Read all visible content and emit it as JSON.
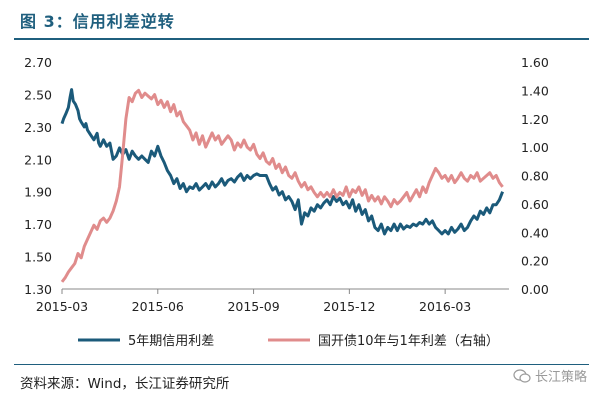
{
  "figure_title": "图 3：信用利差逆转",
  "source": "资料来源：Wind，长江证券研究所",
  "watermark": "长江策略",
  "colors": {
    "title": "#1f5f7e",
    "credit": "#1b5a7a",
    "cdb": "#e08c8c"
  },
  "chart_data": {
    "type": "line",
    "title": "",
    "x_tick_labels": [
      "2015-03",
      "2015-06",
      "2015-09",
      "2015-12",
      "2016-03"
    ],
    "x_range": [
      "2015-03",
      "2016-05"
    ],
    "y_left": {
      "ticks": [
        "1.30",
        "1.50",
        "1.70",
        "1.90",
        "2.10",
        "2.30",
        "2.50",
        "2.70"
      ],
      "ylim": [
        1.3,
        2.7
      ]
    },
    "y_right": {
      "ticks": [
        "0.00",
        "0.20",
        "0.40",
        "0.60",
        "0.80",
        "1.00",
        "1.20",
        "1.40",
        "1.60"
      ],
      "ylim": [
        0.0,
        1.6
      ]
    },
    "grid": false,
    "legend_position": "bottom",
    "series": [
      {
        "name": "5年期信用利差",
        "axis": "left",
        "color": "#1b5a7a",
        "x": [
          0,
          0.05,
          0.12,
          0.2,
          0.25,
          0.3,
          0.35,
          0.42,
          0.5,
          0.55,
          0.6,
          0.7,
          0.75,
          0.8,
          0.9,
          1.0,
          1.1,
          1.15,
          1.2,
          1.3,
          1.4,
          1.5,
          1.6,
          1.7,
          1.8,
          1.9,
          2.0,
          2.1,
          2.2,
          2.3,
          2.4,
          2.5,
          2.6,
          2.7,
          2.8,
          2.9,
          3.0,
          3.1,
          3.2,
          3.3,
          3.4,
          3.5,
          3.6,
          3.7,
          3.8,
          3.9,
          4.0,
          4.1,
          4.2,
          4.3,
          4.4,
          4.5,
          4.6,
          4.7,
          4.8,
          4.9,
          5.0,
          5.1,
          5.2,
          5.3,
          5.4,
          5.5,
          5.6,
          5.7,
          5.8,
          5.9,
          6.0,
          6.1,
          6.2,
          6.3,
          6.4,
          6.5,
          6.6,
          6.7,
          6.8,
          6.9,
          7.0,
          7.1,
          7.2,
          7.3,
          7.4,
          7.5,
          7.6,
          7.7,
          7.8,
          7.9,
          8.0,
          8.1,
          8.2,
          8.3,
          8.4,
          8.5,
          8.6,
          8.7,
          8.8,
          8.9,
          9.0,
          9.1,
          9.2,
          9.3,
          9.4,
          9.5,
          9.6,
          9.7,
          9.8,
          9.9,
          10.0,
          10.1,
          10.2,
          10.3,
          10.4,
          10.5,
          10.6,
          10.7,
          10.8,
          10.9,
          11.0,
          11.1,
          11.2,
          11.3,
          11.4,
          11.5,
          11.6,
          11.7,
          11.8,
          11.9,
          12.0,
          12.1,
          12.2,
          12.3,
          12.4,
          12.5,
          12.6,
          12.7,
          12.8,
          12.9,
          13.0,
          13.1,
          13.2,
          13.3,
          13.4,
          13.5,
          13.6,
          13.7,
          13.8
        ],
        "y": [
          2.32,
          2.35,
          2.38,
          2.42,
          2.48,
          2.53,
          2.46,
          2.44,
          2.4,
          2.35,
          2.33,
          2.3,
          2.32,
          2.28,
          2.25,
          2.22,
          2.26,
          2.2,
          2.18,
          2.22,
          2.18,
          2.2,
          2.1,
          2.12,
          2.17,
          2.13,
          2.16,
          2.1,
          2.15,
          2.12,
          2.1,
          2.12,
          2.1,
          2.08,
          2.15,
          2.12,
          2.18,
          2.12,
          2.08,
          2.03,
          2.0,
          1.95,
          1.98,
          1.92,
          1.95,
          1.9,
          1.93,
          1.92,
          1.95,
          1.91,
          1.93,
          1.95,
          1.92,
          1.96,
          1.93,
          1.95,
          1.98,
          1.94,
          1.97,
          1.98,
          1.96,
          1.99,
          2.01,
          1.97,
          2.0,
          1.98,
          2.0,
          2.01,
          2.0,
          2.0,
          2.0,
          1.95,
          1.91,
          1.93,
          1.88,
          1.9,
          1.85,
          1.87,
          1.84,
          1.79,
          1.85,
          1.7,
          1.77,
          1.75,
          1.8,
          1.78,
          1.82,
          1.8,
          1.83,
          1.85,
          1.82,
          1.87,
          1.84,
          1.86,
          1.82,
          1.84,
          1.8,
          1.85,
          1.78,
          1.82,
          1.76,
          1.79,
          1.72,
          1.75,
          1.68,
          1.66,
          1.7,
          1.64,
          1.68,
          1.66,
          1.7,
          1.66,
          1.7,
          1.67,
          1.69,
          1.68,
          1.7,
          1.69,
          1.71,
          1.7,
          1.73,
          1.7,
          1.72,
          1.68,
          1.66,
          1.64,
          1.66,
          1.64,
          1.68,
          1.65,
          1.67,
          1.7,
          1.66,
          1.68,
          1.72,
          1.75,
          1.73,
          1.78,
          1.76,
          1.8,
          1.77,
          1.82,
          1.82,
          1.85,
          1.9
        ]
      },
      {
        "name": "国开债10年与1年利差（右轴）",
        "axis": "right",
        "color": "#e08c8c",
        "x": [
          0,
          0.1,
          0.2,
          0.3,
          0.4,
          0.5,
          0.6,
          0.7,
          0.8,
          0.9,
          1.0,
          1.1,
          1.2,
          1.3,
          1.4,
          1.5,
          1.6,
          1.7,
          1.8,
          1.9,
          2.0,
          2.1,
          2.2,
          2.3,
          2.4,
          2.5,
          2.6,
          2.7,
          2.8,
          2.9,
          3.0,
          3.1,
          3.2,
          3.3,
          3.4,
          3.5,
          3.6,
          3.7,
          3.8,
          3.9,
          4.0,
          4.1,
          4.2,
          4.3,
          4.4,
          4.5,
          4.6,
          4.7,
          4.8,
          4.9,
          5.0,
          5.1,
          5.2,
          5.3,
          5.4,
          5.5,
          5.6,
          5.7,
          5.8,
          5.9,
          6.0,
          6.1,
          6.2,
          6.3,
          6.4,
          6.5,
          6.6,
          6.7,
          6.8,
          6.9,
          7.0,
          7.1,
          7.2,
          7.3,
          7.4,
          7.5,
          7.6,
          7.7,
          7.8,
          7.9,
          8.0,
          8.1,
          8.2,
          8.3,
          8.4,
          8.5,
          8.6,
          8.7,
          8.8,
          8.9,
          9.0,
          9.1,
          9.2,
          9.3,
          9.4,
          9.5,
          9.6,
          9.7,
          9.8,
          9.9,
          10.0,
          10.1,
          10.2,
          10.3,
          10.4,
          10.5,
          10.6,
          10.7,
          10.8,
          10.9,
          11.0,
          11.1,
          11.2,
          11.3,
          11.4,
          11.5,
          11.6,
          11.7,
          11.8,
          11.9,
          12.0,
          12.1,
          12.2,
          12.3,
          12.4,
          12.5,
          12.6,
          12.7,
          12.8,
          12.9,
          13.0,
          13.1,
          13.2,
          13.3,
          13.4,
          13.5,
          13.6,
          13.7,
          13.8
        ],
        "y": [
          0.05,
          0.08,
          0.12,
          0.15,
          0.18,
          0.25,
          0.22,
          0.3,
          0.35,
          0.4,
          0.45,
          0.42,
          0.48,
          0.5,
          0.47,
          0.5,
          0.55,
          0.62,
          0.72,
          0.95,
          1.2,
          1.35,
          1.32,
          1.38,
          1.4,
          1.35,
          1.38,
          1.36,
          1.34,
          1.37,
          1.3,
          1.33,
          1.28,
          1.32,
          1.25,
          1.3,
          1.22,
          1.25,
          1.18,
          1.15,
          1.12,
          1.05,
          1.1,
          1.02,
          1.08,
          1.0,
          1.05,
          1.1,
          1.05,
          1.08,
          1.02,
          1.05,
          1.08,
          1.05,
          0.98,
          1.03,
          1.0,
          1.05,
          1.0,
          0.98,
          1.02,
          0.95,
          0.92,
          0.96,
          0.9,
          0.88,
          0.92,
          0.85,
          0.88,
          0.82,
          0.86,
          0.8,
          0.78,
          0.82,
          0.76,
          0.72,
          0.75,
          0.7,
          0.72,
          0.68,
          0.65,
          0.68,
          0.65,
          0.68,
          0.65,
          0.7,
          0.65,
          0.68,
          0.66,
          0.72,
          0.65,
          0.7,
          0.68,
          0.72,
          0.66,
          0.7,
          0.62,
          0.66,
          0.62,
          0.65,
          0.6,
          0.65,
          0.62,
          0.58,
          0.63,
          0.6,
          0.62,
          0.65,
          0.68,
          0.62,
          0.66,
          0.7,
          0.65,
          0.72,
          0.68,
          0.75,
          0.8,
          0.85,
          0.82,
          0.78,
          0.8,
          0.76,
          0.8,
          0.75,
          0.78,
          0.82,
          0.78,
          0.76,
          0.8,
          0.78,
          0.82,
          0.76,
          0.78,
          0.8,
          0.82,
          0.78,
          0.8,
          0.75,
          0.72
        ]
      }
    ]
  }
}
